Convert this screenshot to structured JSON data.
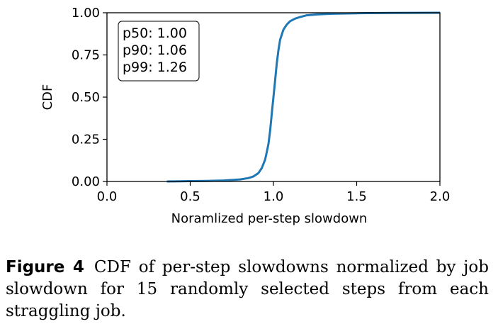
{
  "chart_data": {
    "type": "line",
    "xlabel": "Noramlized per-step slowdown",
    "ylabel": "CDF",
    "xlim": [
      0.0,
      2.0
    ],
    "ylim": [
      0.0,
      1.0
    ],
    "xticks": [
      "0.0",
      "0.5",
      "1.0",
      "1.5",
      "2.0"
    ],
    "yticks": [
      "0.00",
      "0.25",
      "0.50",
      "0.75",
      "1.00"
    ],
    "grid": false,
    "line_color": "#1f77b4",
    "legend_box": {
      "placement": "top-left",
      "lines": [
        "p50: 1.00",
        "p90: 1.06",
        "p99: 1.26"
      ]
    },
    "series": [
      {
        "x": [
          0.36,
          0.5,
          0.6,
          0.7,
          0.8,
          0.85,
          0.88,
          0.91,
          0.93,
          0.95,
          0.97,
          0.98,
          0.99,
          1.0,
          1.01,
          1.02,
          1.03,
          1.04,
          1.06,
          1.08,
          1.1,
          1.13,
          1.16,
          1.2,
          1.26,
          1.35,
          1.5,
          1.7,
          2.0
        ],
        "y": [
          0.0,
          0.002,
          0.003,
          0.006,
          0.012,
          0.02,
          0.03,
          0.05,
          0.08,
          0.13,
          0.22,
          0.3,
          0.4,
          0.5,
          0.6,
          0.7,
          0.78,
          0.84,
          0.9,
          0.93,
          0.95,
          0.965,
          0.975,
          0.985,
          0.99,
          0.994,
          0.997,
          0.999,
          1.0
        ]
      }
    ]
  },
  "caption": {
    "label": "Figure 4",
    "text": "CDF of per-step slowdowns normalized by job slowdown for 15 randomly selected steps from each straggling job."
  }
}
